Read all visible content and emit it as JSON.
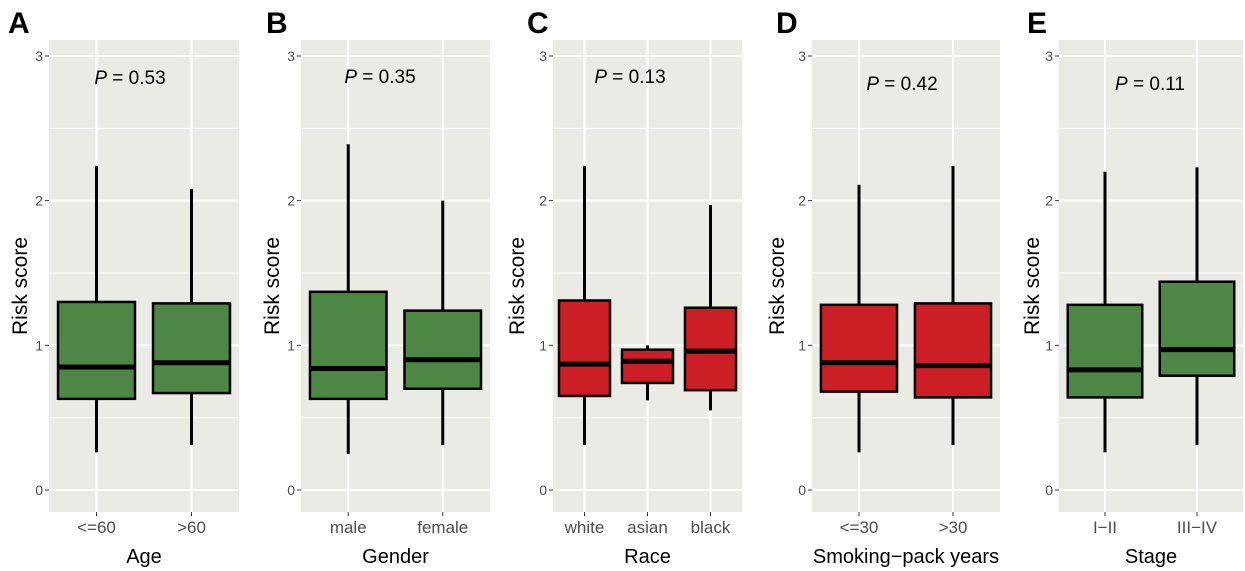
{
  "colors": {
    "green": "#4e8645",
    "red": "#cc1f25",
    "panel_bg": "#ebebe6",
    "grid": "#ffffff"
  },
  "chart_data": [
    {
      "type": "box",
      "panel": "A",
      "ylabel": "Risk score",
      "xlabel": "Age",
      "ylim": [
        0,
        3
      ],
      "yticks": [
        0,
        1,
        2,
        3
      ],
      "p_prefix": "P",
      "p_text": " = 0.53",
      "fill": "green",
      "categories": [
        "<=60",
        ">60"
      ],
      "boxes": [
        {
          "low": 0.26,
          "q1": 0.63,
          "median": 0.85,
          "q3": 1.3,
          "high": 2.24
        },
        {
          "low": 0.31,
          "q1": 0.67,
          "median": 0.88,
          "q3": 1.29,
          "high": 2.08
        }
      ]
    },
    {
      "type": "box",
      "panel": "B",
      "ylabel": "Risk score",
      "xlabel": "Gender",
      "ylim": [
        0,
        3
      ],
      "yticks": [
        0,
        1,
        2,
        3
      ],
      "p_prefix": "P",
      "p_text": " = 0.35",
      "fill": "green",
      "categories": [
        "male",
        "female"
      ],
      "boxes": [
        {
          "low": 0.25,
          "q1": 0.63,
          "median": 0.84,
          "q3": 1.37,
          "high": 2.39
        },
        {
          "low": 0.31,
          "q1": 0.7,
          "median": 0.9,
          "q3": 1.24,
          "high": 2.0
        }
      ]
    },
    {
      "type": "box",
      "panel": "C",
      "ylabel": "Risk score",
      "xlabel": "Race",
      "ylim": [
        0,
        3
      ],
      "yticks": [
        0,
        1,
        2,
        3
      ],
      "p_prefix": "P",
      "p_text": " = 0.13",
      "fill": "red",
      "categories": [
        "white",
        "asian",
        "black"
      ],
      "boxes": [
        {
          "low": 0.31,
          "q1": 0.65,
          "median": 0.87,
          "q3": 1.31,
          "high": 2.24
        },
        {
          "low": 0.62,
          "q1": 0.74,
          "median": 0.89,
          "q3": 0.97,
          "high": 1.0
        },
        {
          "low": 0.55,
          "q1": 0.69,
          "median": 0.96,
          "q3": 1.26,
          "high": 1.97
        }
      ]
    },
    {
      "type": "box",
      "panel": "D",
      "ylabel": "Risk score",
      "xlabel": "Smoking−pack years",
      "ylim": [
        0,
        3
      ],
      "yticks": [
        0,
        1,
        2,
        3
      ],
      "p_prefix": "P",
      "p_text": " = 0.42",
      "fill": "red",
      "categories": [
        "<=30",
        ">30"
      ],
      "boxes": [
        {
          "low": 0.26,
          "q1": 0.68,
          "median": 0.88,
          "q3": 1.28,
          "high": 2.11
        },
        {
          "low": 0.31,
          "q1": 0.64,
          "median": 0.86,
          "q3": 1.29,
          "high": 2.24
        }
      ]
    },
    {
      "type": "box",
      "panel": "E",
      "ylabel": "Risk score",
      "xlabel": "Stage",
      "ylim": [
        0,
        3
      ],
      "yticks": [
        0,
        1,
        2,
        3
      ],
      "p_prefix": "P",
      "p_text": " = 0.11",
      "fill": "green",
      "categories": [
        "I−II",
        "III−IV"
      ],
      "boxes": [
        {
          "low": 0.26,
          "q1": 0.64,
          "median": 0.83,
          "q3": 1.28,
          "high": 2.2
        },
        {
          "low": 0.31,
          "q1": 0.79,
          "median": 0.97,
          "q3": 1.44,
          "high": 2.23
        }
      ]
    }
  ]
}
